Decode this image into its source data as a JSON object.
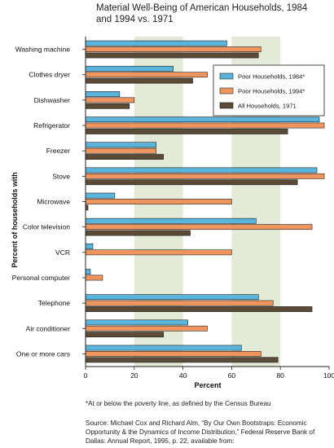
{
  "chart_data": {
    "type": "bar",
    "orientation": "horizontal",
    "title": "Material Well-Being of American Households, 1984 and 1994 vs. 1971",
    "xlabel": "Percent",
    "ylabel": "Percent of households with",
    "xlim": [
      0,
      100
    ],
    "xticks": [
      0,
      20,
      40,
      60,
      80,
      100
    ],
    "grid": "alternating shaded bands",
    "legend_position": "right",
    "categories": [
      "Washing machine",
      "Clothes dryer",
      "Dishwasher",
      "Refrigerator",
      "Freezer",
      "Stove",
      "Microwave",
      "Color television",
      "VCR",
      "Personal computer",
      "Telephone",
      "Air conditioner",
      "One or more cars"
    ],
    "series": [
      {
        "name": "Poor Households, 1984*",
        "color": "#5ab4dc",
        "values": [
          58,
          36,
          14,
          96,
          29,
          95,
          12,
          70,
          3,
          2,
          71,
          42,
          64
        ]
      },
      {
        "name": "Poor Households, 1994*",
        "color": "#ef9560",
        "values": [
          72,
          50,
          20,
          98,
          29,
          98,
          60,
          93,
          60,
          7,
          77,
          50,
          72
        ]
      },
      {
        "name": "All Households, 1971",
        "color": "#5a4a36",
        "values": [
          71,
          44,
          18,
          83,
          32,
          87,
          1,
          43,
          0,
          0,
          93,
          32,
          79
        ]
      }
    ]
  },
  "footnote": "*At or below the poverty line, as defined by the Census Bureau",
  "source": "Source: Michael Cox and Richard Alm, “By Our Own Bootstraps: Economic Opportunity & the Dynamics of Income Distribution,” Federal Reserve Bank of Dallas: Annual Report, 1995, p. 22, available from:"
}
